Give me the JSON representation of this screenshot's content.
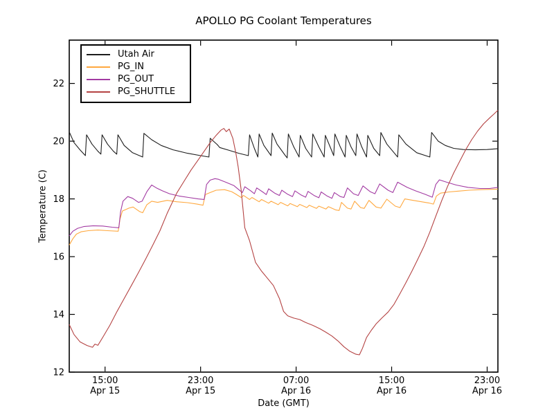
{
  "chart_data": {
    "type": "line",
    "title": "APOLLO PG Coolant Temperatures",
    "xlabel": "Date (GMT)",
    "ylabel": "Temperature (C)",
    "x_unit_hours_from": "Apr 15 12:00 GMT",
    "xlim": [
      0,
      35.9
    ],
    "ylim": [
      12,
      23.5
    ],
    "grid": false,
    "legend_position": "upper left",
    "x_ticks": [
      {
        "t": 3,
        "time": "15:00",
        "date": "Apr 15"
      },
      {
        "t": 11,
        "time": "23:00",
        "date": "Apr 15"
      },
      {
        "t": 19,
        "time": "07:00",
        "date": "Apr 16"
      },
      {
        "t": 27,
        "time": "15:00",
        "date": "Apr 16"
      },
      {
        "t": 35,
        "time": "23:00",
        "date": "Apr 16"
      }
    ],
    "y_ticks": [
      12,
      14,
      16,
      18,
      20,
      22
    ],
    "series": [
      {
        "name": "Utah Air",
        "color": "#1c1c1c",
        "points": [
          [
            0,
            20.32
          ],
          [
            0.4,
            19.95
          ],
          [
            0.9,
            19.7
          ],
          [
            1.35,
            19.5
          ],
          [
            1.45,
            20.22
          ],
          [
            1.9,
            19.9
          ],
          [
            2.4,
            19.65
          ],
          [
            2.65,
            19.55
          ],
          [
            2.75,
            20.22
          ],
          [
            3.2,
            19.9
          ],
          [
            3.7,
            19.65
          ],
          [
            3.98,
            19.55
          ],
          [
            4.08,
            20.22
          ],
          [
            4.6,
            19.85
          ],
          [
            5.3,
            19.6
          ],
          [
            6.15,
            19.45
          ],
          [
            6.25,
            20.27
          ],
          [
            6.9,
            20.05
          ],
          [
            7.7,
            19.85
          ],
          [
            8.7,
            19.7
          ],
          [
            9.9,
            19.58
          ],
          [
            11.0,
            19.5
          ],
          [
            11.7,
            19.45
          ],
          [
            11.8,
            20.1
          ],
          [
            12.4,
            19.88
          ],
          [
            12.6,
            19.78
          ],
          [
            13.4,
            19.68
          ],
          [
            14.2,
            19.58
          ],
          [
            15.0,
            19.5
          ],
          [
            15.1,
            20.22
          ],
          [
            15.5,
            19.75
          ],
          [
            15.8,
            19.45
          ],
          [
            15.9,
            20.25
          ],
          [
            16.3,
            19.85
          ],
          [
            16.9,
            19.5
          ],
          [
            17.0,
            20.28
          ],
          [
            17.4,
            19.9
          ],
          [
            18.1,
            19.5
          ],
          [
            18.25,
            19.42
          ],
          [
            18.35,
            20.25
          ],
          [
            18.8,
            19.8
          ],
          [
            19.25,
            19.45
          ],
          [
            19.35,
            20.2
          ],
          [
            19.8,
            19.75
          ],
          [
            20.3,
            19.45
          ],
          [
            20.4,
            20.25
          ],
          [
            20.9,
            19.8
          ],
          [
            21.35,
            19.45
          ],
          [
            21.45,
            20.2
          ],
          [
            21.9,
            19.75
          ],
          [
            22.15,
            19.5
          ],
          [
            22.25,
            20.25
          ],
          [
            22.7,
            19.8
          ],
          [
            23.1,
            19.45
          ],
          [
            23.2,
            20.2
          ],
          [
            23.6,
            19.8
          ],
          [
            24.0,
            19.5
          ],
          [
            24.1,
            20.25
          ],
          [
            24.5,
            19.8
          ],
          [
            24.9,
            19.45
          ],
          [
            25.0,
            20.2
          ],
          [
            25.5,
            19.75
          ],
          [
            26.0,
            19.5
          ],
          [
            26.1,
            20.3
          ],
          [
            26.6,
            19.9
          ],
          [
            27.2,
            19.6
          ],
          [
            27.5,
            19.45
          ],
          [
            27.6,
            20.22
          ],
          [
            28.2,
            19.9
          ],
          [
            29.1,
            19.6
          ],
          [
            30.2,
            19.45
          ],
          [
            30.35,
            20.3
          ],
          [
            30.9,
            20.0
          ],
          [
            31.5,
            19.85
          ],
          [
            32.2,
            19.75
          ],
          [
            33.0,
            19.71
          ],
          [
            34.0,
            19.7
          ],
          [
            35.0,
            19.71
          ],
          [
            35.9,
            19.74
          ]
        ]
      },
      {
        "name": "PG_IN",
        "color": "#ffa83e",
        "points": [
          [
            0,
            16.4
          ],
          [
            0.3,
            16.62
          ],
          [
            0.6,
            16.78
          ],
          [
            1.0,
            16.86
          ],
          [
            1.6,
            16.9
          ],
          [
            2.4,
            16.92
          ],
          [
            3.2,
            16.9
          ],
          [
            4.1,
            16.88
          ],
          [
            4.25,
            17.3
          ],
          [
            4.45,
            17.58
          ],
          [
            5.0,
            17.68
          ],
          [
            5.35,
            17.72
          ],
          [
            5.9,
            17.56
          ],
          [
            6.15,
            17.52
          ],
          [
            6.5,
            17.8
          ],
          [
            6.9,
            17.92
          ],
          [
            7.4,
            17.88
          ],
          [
            8.2,
            17.95
          ],
          [
            9.0,
            17.9
          ],
          [
            9.9,
            17.87
          ],
          [
            10.7,
            17.82
          ],
          [
            11.2,
            17.78
          ],
          [
            11.4,
            18.15
          ],
          [
            11.8,
            18.22
          ],
          [
            12.3,
            18.3
          ],
          [
            13.0,
            18.32
          ],
          [
            13.6,
            18.25
          ],
          [
            13.9,
            18.18
          ],
          [
            14.4,
            18.05
          ],
          [
            14.6,
            18.12
          ],
          [
            15.1,
            17.98
          ],
          [
            15.3,
            18.05
          ],
          [
            15.9,
            17.9
          ],
          [
            16.1,
            17.98
          ],
          [
            16.7,
            17.85
          ],
          [
            16.9,
            17.92
          ],
          [
            17.5,
            17.8
          ],
          [
            17.7,
            17.88
          ],
          [
            18.3,
            17.76
          ],
          [
            18.5,
            17.84
          ],
          [
            19.1,
            17.73
          ],
          [
            19.3,
            17.81
          ],
          [
            19.9,
            17.7
          ],
          [
            20.1,
            17.78
          ],
          [
            20.7,
            17.67
          ],
          [
            20.9,
            17.75
          ],
          [
            21.5,
            17.65
          ],
          [
            21.7,
            17.73
          ],
          [
            22.3,
            17.62
          ],
          [
            22.6,
            17.6
          ],
          [
            22.8,
            17.88
          ],
          [
            23.3,
            17.68
          ],
          [
            23.6,
            17.65
          ],
          [
            23.9,
            17.92
          ],
          [
            24.4,
            17.7
          ],
          [
            24.7,
            17.67
          ],
          [
            25.1,
            17.95
          ],
          [
            25.7,
            17.72
          ],
          [
            26.1,
            17.68
          ],
          [
            26.6,
            17.99
          ],
          [
            27.3,
            17.75
          ],
          [
            27.7,
            17.7
          ],
          [
            28.1,
            18.0
          ],
          [
            28.8,
            17.95
          ],
          [
            29.5,
            17.9
          ],
          [
            30.1,
            17.86
          ],
          [
            30.5,
            17.82
          ],
          [
            30.75,
            18.1
          ],
          [
            31.1,
            18.2
          ],
          [
            31.8,
            18.24
          ],
          [
            32.6,
            18.27
          ],
          [
            33.5,
            18.3
          ],
          [
            34.5,
            18.32
          ],
          [
            35.9,
            18.34
          ]
        ]
      },
      {
        "name": "PG_OUT",
        "color": "#a23aa2",
        "points": [
          [
            0,
            16.72
          ],
          [
            0.3,
            16.88
          ],
          [
            0.7,
            16.98
          ],
          [
            1.2,
            17.04
          ],
          [
            2.0,
            17.07
          ],
          [
            2.8,
            17.06
          ],
          [
            3.6,
            17.02
          ],
          [
            4.15,
            17.0
          ],
          [
            4.3,
            17.55
          ],
          [
            4.5,
            17.92
          ],
          [
            4.9,
            18.08
          ],
          [
            5.3,
            18.02
          ],
          [
            5.8,
            17.88
          ],
          [
            6.1,
            17.92
          ],
          [
            6.5,
            18.25
          ],
          [
            6.9,
            18.48
          ],
          [
            7.3,
            18.38
          ],
          [
            7.8,
            18.28
          ],
          [
            8.4,
            18.18
          ],
          [
            9.2,
            18.1
          ],
          [
            10.0,
            18.05
          ],
          [
            10.8,
            18.0
          ],
          [
            11.3,
            17.98
          ],
          [
            11.5,
            18.5
          ],
          [
            11.8,
            18.65
          ],
          [
            12.2,
            18.7
          ],
          [
            12.5,
            18.68
          ],
          [
            13.1,
            18.58
          ],
          [
            13.8,
            18.46
          ],
          [
            14.2,
            18.32
          ],
          [
            14.5,
            18.22
          ],
          [
            14.7,
            18.42
          ],
          [
            15.2,
            18.28
          ],
          [
            15.5,
            18.18
          ],
          [
            15.7,
            18.38
          ],
          [
            16.2,
            18.24
          ],
          [
            16.5,
            18.15
          ],
          [
            16.7,
            18.35
          ],
          [
            17.2,
            18.2
          ],
          [
            17.6,
            18.12
          ],
          [
            17.8,
            18.3
          ],
          [
            18.3,
            18.16
          ],
          [
            18.7,
            18.08
          ],
          [
            18.9,
            18.28
          ],
          [
            19.4,
            18.14
          ],
          [
            19.8,
            18.06
          ],
          [
            20.0,
            18.26
          ],
          [
            20.5,
            18.12
          ],
          [
            20.9,
            18.04
          ],
          [
            21.1,
            18.24
          ],
          [
            21.6,
            18.1
          ],
          [
            22.0,
            18.02
          ],
          [
            22.2,
            18.22
          ],
          [
            22.7,
            18.08
          ],
          [
            23.0,
            18.05
          ],
          [
            23.3,
            18.38
          ],
          [
            23.8,
            18.18
          ],
          [
            24.2,
            18.12
          ],
          [
            24.6,
            18.45
          ],
          [
            25.2,
            18.25
          ],
          [
            25.6,
            18.18
          ],
          [
            26.0,
            18.52
          ],
          [
            26.7,
            18.3
          ],
          [
            27.1,
            18.22
          ],
          [
            27.5,
            18.58
          ],
          [
            28.3,
            18.4
          ],
          [
            29.0,
            18.28
          ],
          [
            29.8,
            18.16
          ],
          [
            30.4,
            18.06
          ],
          [
            30.7,
            18.5
          ],
          [
            31.0,
            18.66
          ],
          [
            31.6,
            18.58
          ],
          [
            32.4,
            18.48
          ],
          [
            33.4,
            18.4
          ],
          [
            34.4,
            18.36
          ],
          [
            35.2,
            18.36
          ],
          [
            35.9,
            18.4
          ]
        ]
      },
      {
        "name": "PG_SHUTTLE",
        "color": "#b44242",
        "points": [
          [
            0,
            13.65
          ],
          [
            0.4,
            13.3
          ],
          [
            0.9,
            13.05
          ],
          [
            1.5,
            12.92
          ],
          [
            1.95,
            12.86
          ],
          [
            2.15,
            12.97
          ],
          [
            2.4,
            12.93
          ],
          [
            2.8,
            13.2
          ],
          [
            3.4,
            13.62
          ],
          [
            4.0,
            14.1
          ],
          [
            4.6,
            14.55
          ],
          [
            5.2,
            15.0
          ],
          [
            5.8,
            15.45
          ],
          [
            6.4,
            15.92
          ],
          [
            7.0,
            16.4
          ],
          [
            7.6,
            16.9
          ],
          [
            8.2,
            17.5
          ],
          [
            9.0,
            18.2
          ],
          [
            9.6,
            18.6
          ],
          [
            10.2,
            19.0
          ],
          [
            10.8,
            19.35
          ],
          [
            11.3,
            19.65
          ],
          [
            11.8,
            19.95
          ],
          [
            12.3,
            20.2
          ],
          [
            12.7,
            20.38
          ],
          [
            12.95,
            20.44
          ],
          [
            13.15,
            20.33
          ],
          [
            13.4,
            20.42
          ],
          [
            13.7,
            20.1
          ],
          [
            13.95,
            19.6
          ],
          [
            14.15,
            19.1
          ],
          [
            14.4,
            18.3
          ],
          [
            14.7,
            17.0
          ],
          [
            15.1,
            16.55
          ],
          [
            15.6,
            15.8
          ],
          [
            16.1,
            15.5
          ],
          [
            16.6,
            15.25
          ],
          [
            17.1,
            15.0
          ],
          [
            17.6,
            14.55
          ],
          [
            17.95,
            14.1
          ],
          [
            18.3,
            13.95
          ],
          [
            18.8,
            13.87
          ],
          [
            19.3,
            13.82
          ],
          [
            19.8,
            13.72
          ],
          [
            20.4,
            13.62
          ],
          [
            21.0,
            13.5
          ],
          [
            21.5,
            13.38
          ],
          [
            22.0,
            13.25
          ],
          [
            22.5,
            13.08
          ],
          [
            23.0,
            12.88
          ],
          [
            23.5,
            12.72
          ],
          [
            24.0,
            12.62
          ],
          [
            24.3,
            12.6
          ],
          [
            24.55,
            12.82
          ],
          [
            24.9,
            13.2
          ],
          [
            25.3,
            13.45
          ],
          [
            25.7,
            13.67
          ],
          [
            26.2,
            13.88
          ],
          [
            26.7,
            14.08
          ],
          [
            27.2,
            14.35
          ],
          [
            27.7,
            14.72
          ],
          [
            28.2,
            15.1
          ],
          [
            28.7,
            15.5
          ],
          [
            29.2,
            15.92
          ],
          [
            29.7,
            16.35
          ],
          [
            30.2,
            16.85
          ],
          [
            30.7,
            17.4
          ],
          [
            31.2,
            17.95
          ],
          [
            31.7,
            18.45
          ],
          [
            32.2,
            18.9
          ],
          [
            32.7,
            19.3
          ],
          [
            33.2,
            19.7
          ],
          [
            33.7,
            20.05
          ],
          [
            34.2,
            20.35
          ],
          [
            34.7,
            20.6
          ],
          [
            35.2,
            20.8
          ],
          [
            35.6,
            20.95
          ],
          [
            35.9,
            21.07
          ]
        ]
      }
    ]
  }
}
